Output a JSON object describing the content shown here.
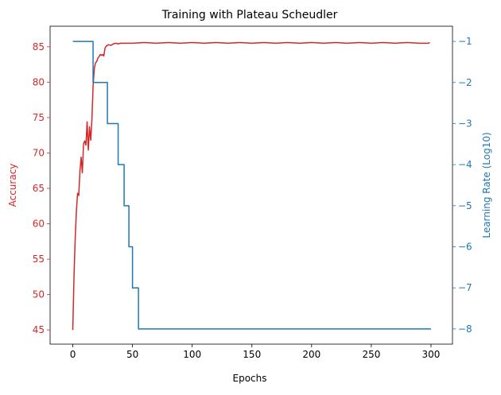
{
  "chart_data": {
    "type": "line",
    "title": "Training with Plateau Scheudler",
    "xlabel": "Epochs",
    "ylabel_left": "Accuracy",
    "ylabel_right": "Learning Rate (Log10)",
    "xlim": [
      -19,
      318
    ],
    "ylim_left": [
      43.0,
      87.9
    ],
    "ylim_right": [
      -8.37,
      -0.63
    ],
    "x_ticks": [
      0,
      50,
      100,
      150,
      200,
      250,
      300
    ],
    "y_ticks_left": [
      45,
      50,
      55,
      60,
      65,
      70,
      75,
      80,
      85
    ],
    "y_ticks_right": [
      -8,
      -7,
      -6,
      -5,
      -4,
      -3,
      -2,
      -1
    ],
    "grid": false,
    "colors": {
      "accuracy": "#d62728",
      "learning_rate": "#1f77b4"
    },
    "series": [
      {
        "axis": "left",
        "x": [
          0,
          1,
          2,
          3,
          4,
          5,
          6,
          7,
          8,
          9,
          10,
          11,
          12,
          13,
          14,
          15,
          16,
          17,
          18,
          19,
          20,
          21,
          22,
          23,
          24,
          25,
          26,
          27,
          28,
          29,
          30,
          32,
          34,
          36,
          38,
          40,
          45,
          50,
          60,
          70,
          80,
          90,
          100,
          110,
          120,
          130,
          140,
          150,
          160,
          170,
          180,
          190,
          200,
          210,
          220,
          230,
          240,
          250,
          260,
          270,
          280,
          290,
          298,
          299
        ],
        "values": [
          45.0,
          52.5,
          57.8,
          61.7,
          64.3,
          64.0,
          67.5,
          69.4,
          67.2,
          71.3,
          71.7,
          71.1,
          74.4,
          70.4,
          73.7,
          71.8,
          74.6,
          79.4,
          81.9,
          82.7,
          82.9,
          83.4,
          83.6,
          83.9,
          83.8,
          83.9,
          83.7,
          84.8,
          85.1,
          85.2,
          85.3,
          85.2,
          85.4,
          85.5,
          85.4,
          85.5,
          85.5,
          85.5,
          85.6,
          85.5,
          85.6,
          85.5,
          85.6,
          85.5,
          85.6,
          85.5,
          85.6,
          85.5,
          85.6,
          85.5,
          85.6,
          85.5,
          85.6,
          85.5,
          85.6,
          85.5,
          85.6,
          85.5,
          85.6,
          85.5,
          85.6,
          85.5,
          85.5,
          85.6
        ]
      },
      {
        "axis": "right",
        "x": [
          0,
          17,
          17,
          29,
          29,
          38,
          38,
          43,
          43,
          47,
          47,
          50,
          50,
          55,
          55,
          300
        ],
        "values": [
          -1,
          -1,
          -2,
          -2,
          -3,
          -3,
          -4,
          -4,
          -5,
          -5,
          -6,
          -6,
          -7,
          -7,
          -8,
          -8
        ]
      }
    ]
  }
}
